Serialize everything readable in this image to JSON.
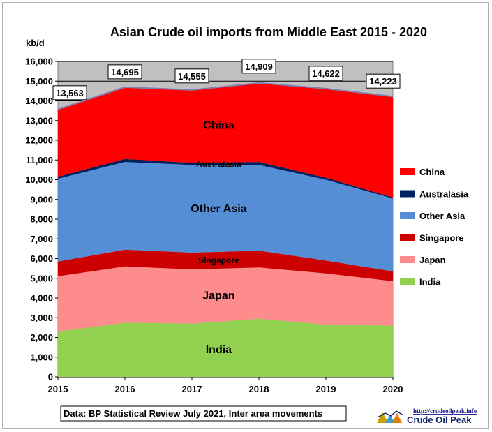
{
  "chart_data": {
    "type": "area",
    "stacked": true,
    "title": "Asian Crude oil imports from Middle East 2015 - 2020",
    "unit_label": "kb/d",
    "x": [
      2015,
      2016,
      2017,
      2018,
      2019,
      2020
    ],
    "ylim": [
      0,
      16000
    ],
    "y_ticks": [
      "0",
      "1,000",
      "2,000",
      "3,000",
      "4,000",
      "5,000",
      "6,000",
      "7,000",
      "8,000",
      "9,000",
      "10,000",
      "11,000",
      "12,000",
      "13,000",
      "14,000",
      "15,000",
      "16,000"
    ],
    "x_ticks": [
      "2015",
      "2016",
      "2017",
      "2018",
      "2019",
      "2020"
    ],
    "series": [
      {
        "name": "India",
        "color": "#92d050",
        "values": [
          2300,
          2750,
          2700,
          2950,
          2650,
          2600
        ]
      },
      {
        "name": "Japan",
        "color": "#ff8c8c",
        "values": [
          2800,
          2850,
          2750,
          2600,
          2600,
          2250
        ]
      },
      {
        "name": "Singapore",
        "color": "#cc0000",
        "values": [
          750,
          850,
          850,
          850,
          650,
          500
        ]
      },
      {
        "name": "Other Asia",
        "color": "#558ed5",
        "values": [
          4200,
          4450,
          4450,
          4350,
          4100,
          3700
        ]
      },
      {
        "name": "Australasia",
        "color": "#002060",
        "values": [
          100,
          150,
          100,
          150,
          100,
          50
        ]
      },
      {
        "name": "China",
        "color": "#ff0000",
        "values": [
          3413,
          3645,
          3705,
          4009,
          4522,
          5123
        ]
      }
    ],
    "totals": [
      "13,563",
      "14,695",
      "14,555",
      "14,909",
      "14,622",
      "14,223"
    ],
    "area_labels": [
      "India",
      "Japan",
      "Singapore",
      "Other Asia",
      "Australasia",
      "China"
    ],
    "legend": {
      "position": "right",
      "order": [
        "China",
        "Australasia",
        "Other Asia",
        "Singapore",
        "Japan",
        "India"
      ]
    },
    "grid": true,
    "plot_background": "#c0c0c0",
    "annotation": "Data: BP Statistical Review July 2021, Inter area movements"
  },
  "logo": {
    "url_text": "http://crudeoilpeak.info",
    "brand_text": "Crude Oil Peak"
  }
}
